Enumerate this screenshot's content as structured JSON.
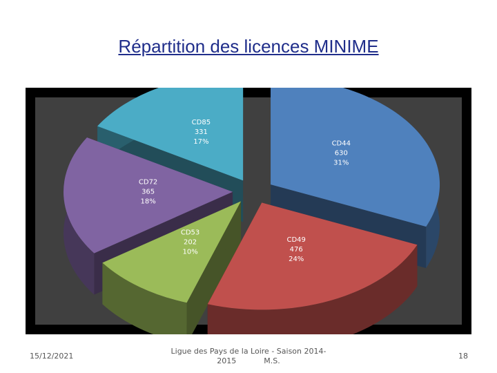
{
  "slide": {
    "title": "Répartition des licences MINIME",
    "footer_date": "15/12/2021",
    "footer_center_line1": "Ligue des Pays de la Loire - Saison 2014-",
    "footer_center_line2": "2015",
    "footer_author": "M.S.",
    "page_number": "18"
  },
  "chart_data": {
    "type": "pie",
    "title": "",
    "slices": [
      {
        "label": "CD44",
        "value": 630,
        "percent": "31%",
        "color": "#4f81bd"
      },
      {
        "label": "CD49",
        "value": 476,
        "percent": "24%",
        "color": "#c0504d"
      },
      {
        "label": "CD53",
        "value": 202,
        "percent": "10%",
        "color": "#9bbb59"
      },
      {
        "label": "CD72",
        "value": 365,
        "percent": "18%",
        "color": "#8064a2"
      },
      {
        "label": "CD85",
        "value": 331,
        "percent": "17%",
        "color": "#4bacc6"
      }
    ],
    "exploded": true,
    "style": "3d",
    "plot_background": "#404040",
    "frame_color": "#000000",
    "label_color": "#ffffff"
  }
}
